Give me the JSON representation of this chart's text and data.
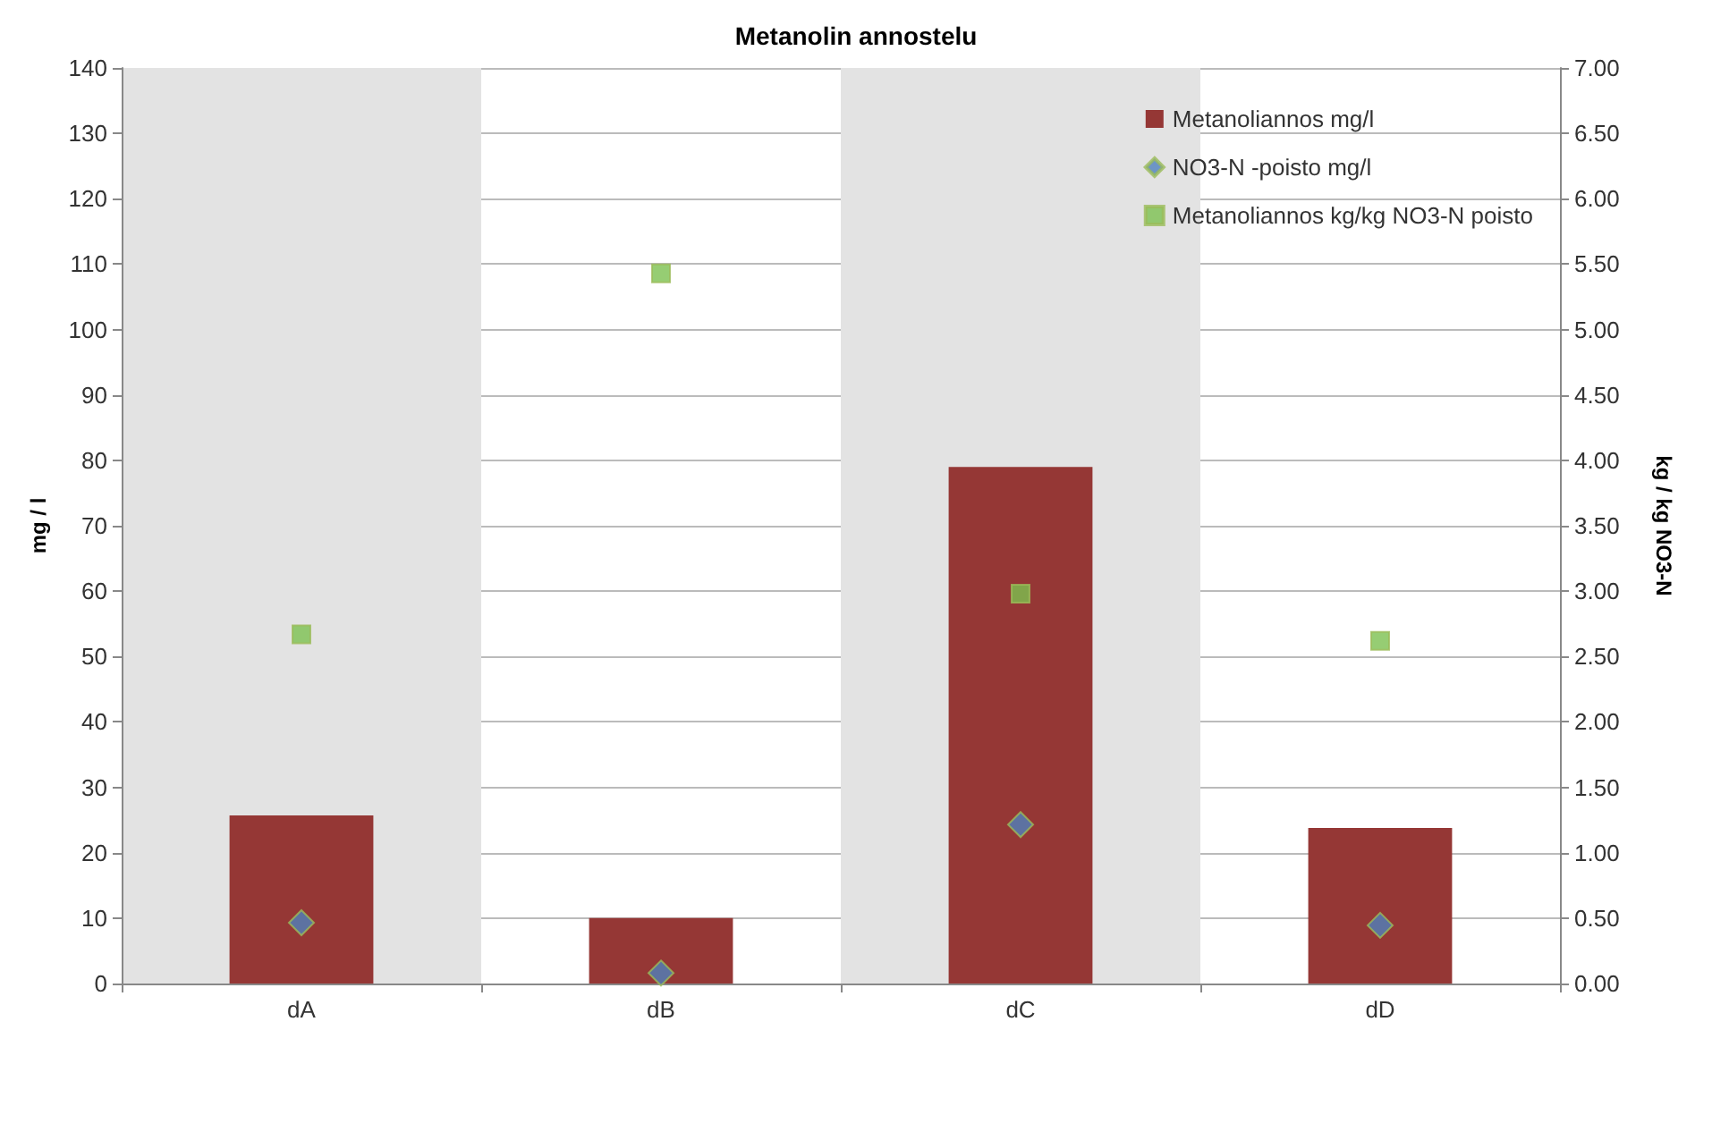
{
  "chart_data": {
    "type": "bar",
    "title": "Metanolin annostelu",
    "ylabel": "mg / l",
    "y2label": "kg / kg NO3-N",
    "categories": [
      "dA",
      "dB",
      "dC",
      "dD"
    ],
    "series": [
      {
        "name": "Metanoliannos mg/l",
        "color": "#953735",
        "values": [
          25.7,
          10,
          79,
          23.8
        ]
      },
      {
        "name": "NO3-N -poisto mg/l",
        "type": "scatter",
        "marker": "diamond",
        "color": "#4f81bd",
        "values": [
          9.3,
          1.6,
          24.3,
          8.9
        ]
      },
      {
        "name": "Metanoliannos kg/kg NO3-N poisto",
        "type": "scatter",
        "marker": "square",
        "color": "#7cc150",
        "axis": "y2",
        "values": [
          2.67,
          5.43,
          2.98,
          2.62
        ]
      }
    ],
    "ylim": [
      0,
      140
    ],
    "yticks": [
      0,
      10,
      20,
      30,
      40,
      50,
      60,
      70,
      80,
      90,
      100,
      110,
      120,
      130,
      140
    ],
    "y2lim": [
      0,
      7
    ],
    "y2ticks": [
      {
        "value": 0,
        "label": "0.00"
      },
      {
        "value": 0.5,
        "label": "0.50"
      },
      {
        "value": 1,
        "label": "1.00"
      },
      {
        "value": 1.5,
        "label": "1.50"
      },
      {
        "value": 2,
        "label": "2.00"
      },
      {
        "value": 2.5,
        "label": "2.50"
      },
      {
        "value": 3,
        "label": "3.00"
      },
      {
        "value": 3.5,
        "label": "3.50"
      },
      {
        "value": 4,
        "label": "4.00"
      },
      {
        "value": 4.5,
        "label": "4.50"
      },
      {
        "value": 5,
        "label": "5.00"
      },
      {
        "value": 5.5,
        "label": "5.50"
      },
      {
        "value": 6,
        "label": "6.00"
      },
      {
        "value": 6.5,
        "label": "6.50"
      },
      {
        "value": 7,
        "label": "7.00"
      }
    ],
    "bands": [
      {
        "axis": "x",
        "from": "dA",
        "to": "dA",
        "color": "#e3e3e3"
      },
      {
        "axis": "x",
        "from": "dC",
        "to": "dC",
        "color": "#e3e3e3"
      }
    ],
    "grid": "y",
    "legend": "top right"
  }
}
